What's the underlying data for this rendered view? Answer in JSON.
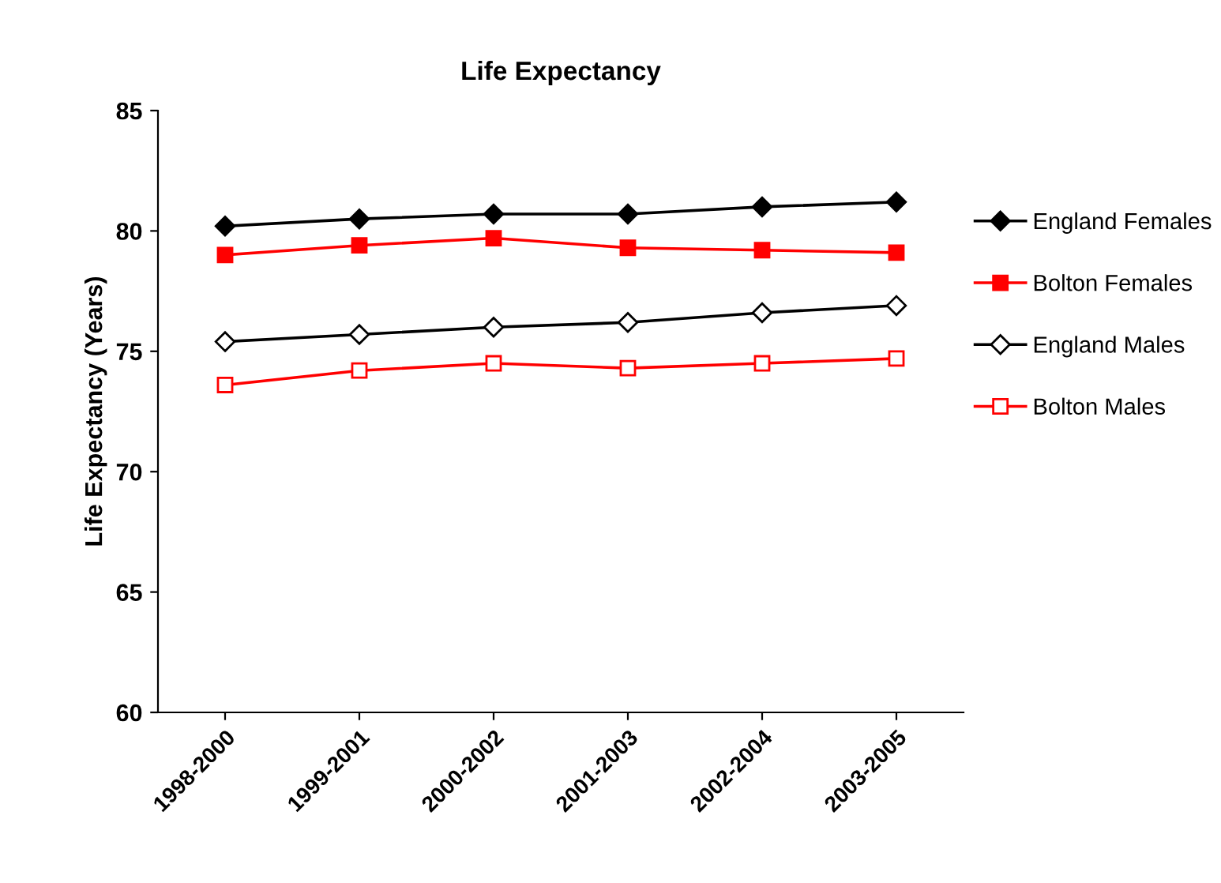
{
  "chart_data": {
    "type": "line",
    "title": "Life Expectancy",
    "ylabel": "Life Expectancy (Years)",
    "categories": [
      "1998-2000",
      "1999-2001",
      "2000-2002",
      "2001-2003",
      "2002-2004",
      "2003-2005"
    ],
    "series": [
      {
        "name": "England Females",
        "color": "#000000",
        "marker": "diamond",
        "values": [
          80.2,
          80.5,
          80.7,
          80.7,
          81.0,
          81.2
        ]
      },
      {
        "name": "Bolton Females",
        "color": "#ff0000",
        "marker": "square",
        "values": [
          79.0,
          79.4,
          79.7,
          79.3,
          79.2,
          79.1
        ]
      },
      {
        "name": "England Males",
        "color": "#000000",
        "marker": "diamond",
        "values": [
          75.4,
          75.7,
          76.0,
          76.2,
          76.6,
          76.9
        ]
      },
      {
        "name": "Bolton Males",
        "color": "#ff0000",
        "marker": "square",
        "values": [
          73.6,
          74.2,
          74.5,
          74.3,
          74.5,
          74.7
        ]
      }
    ],
    "ylim": [
      60,
      85
    ],
    "yticks": [
      60,
      65,
      70,
      75,
      80,
      85
    ],
    "grid": false,
    "legend": "right",
    "line_style": "solid"
  }
}
